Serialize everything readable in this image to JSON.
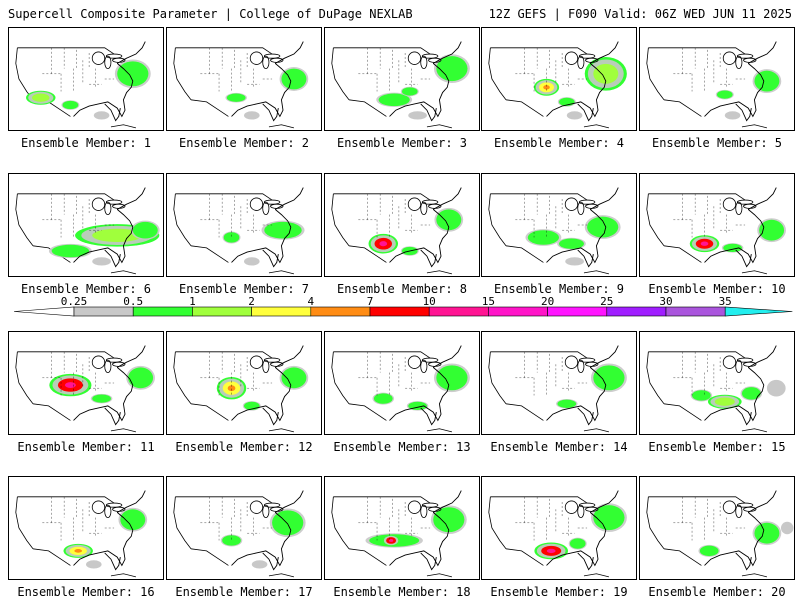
{
  "header": {
    "left": "Supercell Composite Parameter | College of DuPage NEXLAB",
    "right": "12Z GEFS | F090 Valid: 06Z WED JUN 11 2025"
  },
  "legend": {
    "ticks": [
      "0.25",
      "0.5",
      "1",
      "2",
      "4",
      "7",
      "10",
      "15",
      "20",
      "25",
      "30",
      "35"
    ],
    "colors": [
      "#c8c8c8",
      "#32ff32",
      "#a0ff3c",
      "#ffff3c",
      "#ff8c14",
      "#ff0000",
      "#ff1493",
      "#ff14c8",
      "#ff14ff",
      "#a01eff",
      "#aa55dd",
      "#22eeee"
    ]
  },
  "members": [
    {
      "label": "Ensemble Member: 1",
      "blobs": [
        [
          0.21,
          0.68,
          0.07,
          0.05,
          2
        ],
        [
          0.4,
          0.75,
          0.05,
          0.04,
          1
        ],
        [
          0.8,
          0.45,
          0.1,
          0.12,
          1
        ],
        [
          0.6,
          0.85,
          0.05,
          0.04,
          0
        ]
      ]
    },
    {
      "label": "Ensemble Member: 2",
      "blobs": [
        [
          0.45,
          0.68,
          0.06,
          0.04,
          1
        ],
        [
          0.82,
          0.5,
          0.08,
          0.1,
          1
        ],
        [
          0.55,
          0.85,
          0.05,
          0.04,
          0
        ]
      ]
    },
    {
      "label": "Ensemble Member: 3",
      "blobs": [
        [
          0.45,
          0.7,
          0.1,
          0.06,
          1
        ],
        [
          0.55,
          0.62,
          0.05,
          0.04,
          1
        ],
        [
          0.82,
          0.4,
          0.1,
          0.12,
          1
        ],
        [
          0.6,
          0.85,
          0.06,
          0.04,
          0
        ]
      ]
    },
    {
      "label": "Ensemble Member: 4",
      "blobs": [
        [
          0.42,
          0.58,
          0.06,
          0.06,
          3
        ],
        [
          0.55,
          0.72,
          0.05,
          0.04,
          1
        ],
        [
          0.8,
          0.45,
          0.1,
          0.12,
          2
        ],
        [
          0.6,
          0.85,
          0.05,
          0.04,
          0
        ]
      ]
    },
    {
      "label": "Ensemble Member: 5",
      "blobs": [
        [
          0.55,
          0.65,
          0.05,
          0.04,
          1
        ],
        [
          0.82,
          0.52,
          0.08,
          0.1,
          1
        ],
        [
          0.6,
          0.85,
          0.05,
          0.04,
          0
        ]
      ]
    },
    {
      "label": "Ensemble Member: 6",
      "blobs": [
        [
          0.4,
          0.75,
          0.12,
          0.06,
          1
        ],
        [
          0.7,
          0.6,
          0.2,
          0.08,
          2
        ],
        [
          0.88,
          0.55,
          0.08,
          0.08,
          1
        ],
        [
          0.6,
          0.85,
          0.06,
          0.04,
          0
        ]
      ]
    },
    {
      "label": "Ensemble Member: 7",
      "blobs": [
        [
          0.42,
          0.62,
          0.05,
          0.05,
          1
        ],
        [
          0.75,
          0.55,
          0.12,
          0.08,
          1
        ],
        [
          0.55,
          0.85,
          0.05,
          0.04,
          0
        ]
      ]
    },
    {
      "label": "Ensemble Member: 8",
      "blobs": [
        [
          0.38,
          0.68,
          0.07,
          0.07,
          5
        ],
        [
          0.55,
          0.75,
          0.05,
          0.04,
          1
        ],
        [
          0.8,
          0.45,
          0.08,
          0.1,
          1
        ]
      ]
    },
    {
      "label": "Ensemble Member: 9",
      "blobs": [
        [
          0.4,
          0.62,
          0.1,
          0.07,
          1
        ],
        [
          0.58,
          0.68,
          0.08,
          0.05,
          1
        ],
        [
          0.78,
          0.52,
          0.1,
          0.1,
          1
        ],
        [
          0.6,
          0.85,
          0.06,
          0.04,
          0
        ]
      ]
    },
    {
      "label": "Ensemble Member: 10",
      "blobs": [
        [
          0.42,
          0.68,
          0.07,
          0.06,
          5
        ],
        [
          0.6,
          0.72,
          0.06,
          0.04,
          1
        ],
        [
          0.85,
          0.55,
          0.08,
          0.1,
          1
        ]
      ]
    },
    {
      "label": "Ensemble Member: 11",
      "blobs": [
        [
          0.4,
          0.52,
          0.1,
          0.08,
          5
        ],
        [
          0.6,
          0.65,
          0.06,
          0.04,
          1
        ],
        [
          0.85,
          0.45,
          0.08,
          0.1,
          1
        ]
      ]
    },
    {
      "label": "Ensemble Member: 12",
      "blobs": [
        [
          0.42,
          0.55,
          0.07,
          0.08,
          3
        ],
        [
          0.55,
          0.72,
          0.05,
          0.04,
          1
        ],
        [
          0.82,
          0.45,
          0.08,
          0.1,
          1
        ]
      ]
    },
    {
      "label": "Ensemble Member: 13",
      "blobs": [
        [
          0.38,
          0.65,
          0.06,
          0.05,
          1
        ],
        [
          0.6,
          0.72,
          0.06,
          0.04,
          1
        ],
        [
          0.82,
          0.45,
          0.1,
          0.12,
          1
        ]
      ]
    },
    {
      "label": "Ensemble Member: 14",
      "blobs": [
        [
          0.55,
          0.7,
          0.06,
          0.04,
          1
        ],
        [
          0.82,
          0.45,
          0.1,
          0.12,
          1
        ]
      ]
    },
    {
      "label": "Ensemble Member: 15",
      "blobs": [
        [
          0.4,
          0.62,
          0.06,
          0.05,
          1
        ],
        [
          0.55,
          0.68,
          0.08,
          0.05,
          2
        ],
        [
          0.72,
          0.6,
          0.06,
          0.06,
          1
        ],
        [
          0.88,
          0.55,
          0.06,
          0.08,
          0
        ]
      ]
    },
    {
      "label": "Ensemble Member: 16",
      "blobs": [
        [
          0.45,
          0.72,
          0.07,
          0.05,
          3
        ],
        [
          0.8,
          0.42,
          0.08,
          0.1,
          1
        ],
        [
          0.55,
          0.85,
          0.05,
          0.04,
          0
        ]
      ]
    },
    {
      "label": "Ensemble Member: 17",
      "blobs": [
        [
          0.42,
          0.62,
          0.06,
          0.05,
          1
        ],
        [
          0.78,
          0.45,
          0.1,
          0.12,
          1
        ],
        [
          0.6,
          0.85,
          0.05,
          0.04,
          0
        ]
      ]
    },
    {
      "label": "Ensemble Member: 18",
      "blobs": [
        [
          0.45,
          0.62,
          0.16,
          0.06,
          1
        ],
        [
          0.43,
          0.62,
          0.04,
          0.04,
          5
        ],
        [
          0.8,
          0.42,
          0.1,
          0.12,
          1
        ]
      ]
    },
    {
      "label": "Ensemble Member: 19",
      "blobs": [
        [
          0.45,
          0.72,
          0.08,
          0.06,
          5
        ],
        [
          0.62,
          0.65,
          0.05,
          0.05,
          1
        ],
        [
          0.82,
          0.4,
          0.1,
          0.12,
          1
        ]
      ]
    },
    {
      "label": "Ensemble Member: 20",
      "blobs": [
        [
          0.45,
          0.72,
          0.06,
          0.05,
          1
        ],
        [
          0.82,
          0.55,
          0.08,
          0.1,
          1
        ],
        [
          0.95,
          0.5,
          0.04,
          0.06,
          0
        ]
      ]
    }
  ]
}
